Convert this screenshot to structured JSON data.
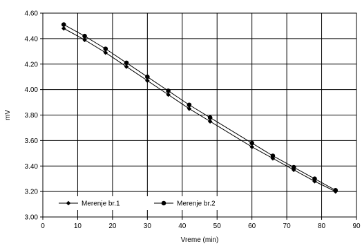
{
  "chart_data": {
    "type": "line",
    "xlabel": "Vreme (min)",
    "ylabel": "mV",
    "xlim": [
      0,
      90
    ],
    "ylim": [
      3.0,
      4.6
    ],
    "x_ticks": [
      "0",
      "10",
      "20",
      "30",
      "40",
      "50",
      "60",
      "70",
      "80",
      "90"
    ],
    "y_ticks": [
      "3.00",
      "3.20",
      "3.40",
      "3.60",
      "3.80",
      "4.00",
      "4.20",
      "4.40",
      "4.60"
    ],
    "grid": true,
    "legend_position": "bottom-left",
    "series": [
      {
        "name": "Merenje br.1",
        "marker": "diamond",
        "x": [
          6,
          12,
          18,
          24,
          30,
          36,
          42,
          48,
          60,
          66,
          72,
          78,
          84
        ],
        "y": [
          4.48,
          4.39,
          4.29,
          4.18,
          4.07,
          3.96,
          3.85,
          3.75,
          3.55,
          3.46,
          3.37,
          3.28,
          3.2
        ]
      },
      {
        "name": "Merenje br.2",
        "marker": "circle",
        "x": [
          6,
          12,
          18,
          24,
          30,
          36,
          42,
          48,
          60,
          66,
          72,
          78,
          84
        ],
        "y": [
          4.51,
          4.42,
          4.32,
          4.21,
          4.1,
          3.99,
          3.88,
          3.78,
          3.58,
          3.48,
          3.39,
          3.3,
          3.21
        ]
      }
    ]
  }
}
